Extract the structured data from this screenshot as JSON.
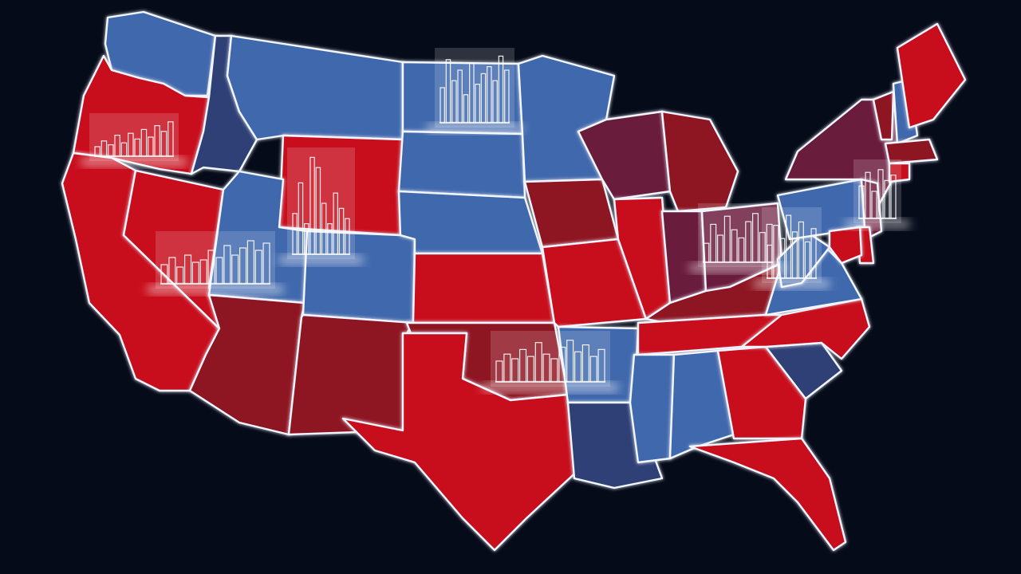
{
  "map": {
    "background": "#060b1a",
    "border_color": "#f2f6ff",
    "palette": {
      "red": "#c8101e",
      "dark_red": "#8e1423",
      "blue": "#3f67ad",
      "dark_blue": "#2e3f74",
      "purple": "#6b1f3c"
    },
    "states": [
      {
        "id": "WA",
        "color": "blue"
      },
      {
        "id": "OR",
        "color": "red"
      },
      {
        "id": "CA",
        "color": "red"
      },
      {
        "id": "ID",
        "color": "dark_blue"
      },
      {
        "id": "NV",
        "color": "red"
      },
      {
        "id": "MT",
        "color": "blue"
      },
      {
        "id": "WY",
        "color": "red"
      },
      {
        "id": "UT",
        "color": "blue"
      },
      {
        "id": "AZ",
        "color": "dark_red"
      },
      {
        "id": "CO",
        "color": "blue"
      },
      {
        "id": "NM",
        "color": "dark_red"
      },
      {
        "id": "ND",
        "color": "blue"
      },
      {
        "id": "SD",
        "color": "blue"
      },
      {
        "id": "NE",
        "color": "blue"
      },
      {
        "id": "KS",
        "color": "red"
      },
      {
        "id": "OK",
        "color": "dark_red"
      },
      {
        "id": "TX",
        "color": "red"
      },
      {
        "id": "MN",
        "color": "blue"
      },
      {
        "id": "IA",
        "color": "dark_red"
      },
      {
        "id": "MO",
        "color": "red"
      },
      {
        "id": "AR",
        "color": "blue"
      },
      {
        "id": "LA",
        "color": "dark_blue"
      },
      {
        "id": "WI",
        "color": "purple"
      },
      {
        "id": "IL",
        "color": "red"
      },
      {
        "id": "MI",
        "color": "dark_red"
      },
      {
        "id": "IN",
        "color": "purple"
      },
      {
        "id": "OH",
        "color": "purple"
      },
      {
        "id": "KY",
        "color": "dark_red"
      },
      {
        "id": "TN",
        "color": "red"
      },
      {
        "id": "MS",
        "color": "blue"
      },
      {
        "id": "AL",
        "color": "blue"
      },
      {
        "id": "GA",
        "color": "red"
      },
      {
        "id": "FL",
        "color": "red"
      },
      {
        "id": "SC",
        "color": "dark_blue"
      },
      {
        "id": "NC",
        "color": "red"
      },
      {
        "id": "VA",
        "color": "blue"
      },
      {
        "id": "WV",
        "color": "blue"
      },
      {
        "id": "PA",
        "color": "blue"
      },
      {
        "id": "NY",
        "color": "purple"
      },
      {
        "id": "VT",
        "color": "dark_red"
      },
      {
        "id": "NH",
        "color": "blue"
      },
      {
        "id": "ME",
        "color": "red"
      },
      {
        "id": "MA",
        "color": "dark_red"
      },
      {
        "id": "CT",
        "color": "red"
      },
      {
        "id": "NJ",
        "color": "purple"
      },
      {
        "id": "DE",
        "color": "red"
      },
      {
        "id": "MD",
        "color": "red"
      }
    ],
    "overlays": [
      {
        "id": "oregon-bars",
        "bars": [
          0.25,
          0.4,
          0.3,
          0.55,
          0.35,
          0.6,
          0.45,
          0.7,
          0.5,
          0.8,
          0.65,
          0.9
        ]
      },
      {
        "id": "wyoming-bars",
        "bars": [
          0.4,
          0.7,
          0.3,
          0.95,
          0.85,
          0.5,
          0.3,
          0.6,
          0.45,
          0.35
        ]
      },
      {
        "id": "nevada-bars",
        "bars": [
          0.4,
          0.55,
          0.35,
          0.6,
          0.45,
          0.5,
          0.7,
          0.55,
          0.8,
          0.6,
          0.75,
          0.9,
          0.7,
          0.85
        ]
      },
      {
        "id": "minnesota-bars",
        "bars": [
          0.5,
          0.9,
          0.6,
          0.75,
          0.4,
          0.85,
          0.55,
          0.7,
          0.8,
          0.6,
          0.95,
          0.75
        ]
      },
      {
        "id": "oklahoma-bars",
        "bars": [
          0.45,
          0.6,
          0.5,
          0.7,
          0.55,
          0.85,
          0.6,
          0.5,
          0.75,
          0.9,
          0.65,
          0.8,
          0.55,
          0.7
        ]
      },
      {
        "id": "ohio-bars",
        "bars": [
          0.35,
          0.7,
          0.5,
          0.85,
          0.6,
          0.45,
          0.75,
          0.9,
          0.55,
          0.7
        ]
      },
      {
        "id": "virginia-bars",
        "bars": [
          0.5,
          0.8,
          0.6,
          0.95,
          0.7,
          0.85,
          0.55,
          0.75
        ]
      },
      {
        "id": "newyork-bars",
        "bars": [
          0.6,
          0.85,
          0.5,
          0.9,
          0.7,
          0.8
        ]
      }
    ]
  }
}
